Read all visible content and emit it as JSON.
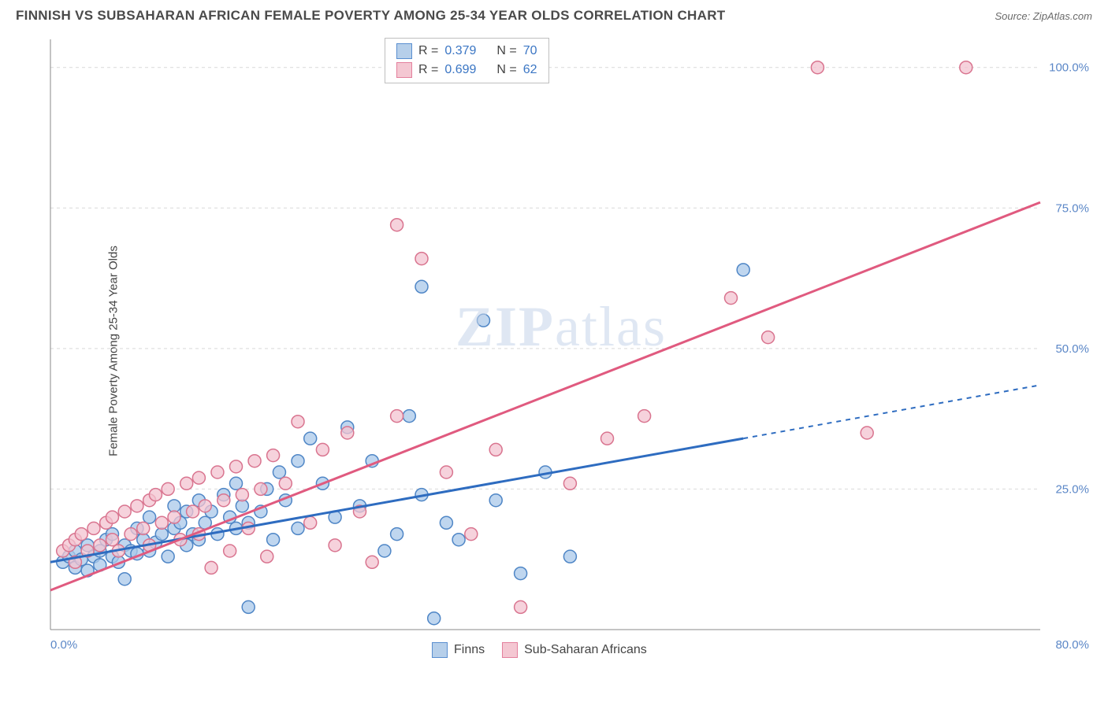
{
  "header": {
    "title": "FINNISH VS SUBSAHARAN AFRICAN FEMALE POVERTY AMONG 25-34 YEAR OLDS CORRELATION CHART",
    "source_prefix": "Source: ",
    "source_name": "ZipAtlas.com"
  },
  "chart": {
    "type": "scatter",
    "ylabel": "Female Poverty Among 25-34 Year Olds",
    "watermark": "ZIPatlas",
    "background_color": "#ffffff",
    "grid_color": "#d9d9d9",
    "axis_color": "#888888",
    "tick_label_color": "#5b87c7",
    "xlim": [
      0,
      80
    ],
    "ylim": [
      0,
      105
    ],
    "x_ticks": [
      {
        "v": 0,
        "label": "0.0%"
      },
      {
        "v": 80,
        "label": "80.0%"
      }
    ],
    "y_ticks": [
      {
        "v": 25,
        "label": "25.0%"
      },
      {
        "v": 50,
        "label": "50.0%"
      },
      {
        "v": 75,
        "label": "75.0%"
      },
      {
        "v": 100,
        "label": "100.0%"
      }
    ],
    "stat_legend": {
      "rows": [
        {
          "swatch_fill": "#b6cfea",
          "swatch_stroke": "#5a8fd0",
          "r_label": "R = ",
          "r": "0.379",
          "n_label": "N = ",
          "n": "70"
        },
        {
          "swatch_fill": "#f4c7d2",
          "swatch_stroke": "#e4809d",
          "r_label": "R = ",
          "r": "0.699",
          "n_label": "N = ",
          "n": "62"
        }
      ]
    },
    "bottom_legend": {
      "items": [
        {
          "swatch_fill": "#b6cfea",
          "swatch_stroke": "#5a8fd0",
          "label": "Finns"
        },
        {
          "swatch_fill": "#f4c7d2",
          "swatch_stroke": "#e4809d",
          "label": "Sub-Saharan Africans"
        }
      ]
    },
    "series": [
      {
        "name": "Finns",
        "marker_fill": "#a9c8e9",
        "marker_stroke": "#4f86c6",
        "marker_opacity": 0.75,
        "marker_radius": 8,
        "trend": {
          "color": "#2e6cc0",
          "width": 3,
          "x0": 0,
          "y0": 12,
          "x1": 56,
          "y1": 34,
          "dash_x1": 80,
          "dash_y1": 43.5
        },
        "points": [
          [
            1,
            12
          ],
          [
            1.5,
            13
          ],
          [
            2,
            11
          ],
          [
            2,
            14
          ],
          [
            2.5,
            12.5
          ],
          [
            3,
            10.5
          ],
          [
            3,
            15
          ],
          [
            3.5,
            13
          ],
          [
            4,
            14
          ],
          [
            4,
            11.5
          ],
          [
            4.5,
            16
          ],
          [
            5,
            13
          ],
          [
            5,
            17
          ],
          [
            5.5,
            12
          ],
          [
            6,
            15
          ],
          [
            6,
            9
          ],
          [
            6.5,
            14
          ],
          [
            7,
            13.5
          ],
          [
            7,
            18
          ],
          [
            7.5,
            16
          ],
          [
            8,
            14
          ],
          [
            8,
            20
          ],
          [
            8.5,
            15.5
          ],
          [
            9,
            17
          ],
          [
            9.5,
            13
          ],
          [
            10,
            18
          ],
          [
            10,
            22
          ],
          [
            10.5,
            19
          ],
          [
            11,
            15
          ],
          [
            11,
            21
          ],
          [
            11.5,
            17
          ],
          [
            12,
            23
          ],
          [
            12,
            16
          ],
          [
            12.5,
            19
          ],
          [
            13,
            21
          ],
          [
            13.5,
            17
          ],
          [
            14,
            24
          ],
          [
            14.5,
            20
          ],
          [
            15,
            18
          ],
          [
            15,
            26
          ],
          [
            15.5,
            22
          ],
          [
            16,
            19
          ],
          [
            16,
            4
          ],
          [
            17,
            21
          ],
          [
            17.5,
            25
          ],
          [
            18,
            16
          ],
          [
            18.5,
            28
          ],
          [
            19,
            23
          ],
          [
            20,
            18
          ],
          [
            20,
            30
          ],
          [
            21,
            34
          ],
          [
            22,
            26
          ],
          [
            23,
            20
          ],
          [
            24,
            36
          ],
          [
            25,
            22
          ],
          [
            26,
            30
          ],
          [
            27,
            14
          ],
          [
            28,
            17
          ],
          [
            29,
            38
          ],
          [
            30,
            24
          ],
          [
            30,
            61
          ],
          [
            31,
            2
          ],
          [
            32,
            19
          ],
          [
            33,
            16
          ],
          [
            35,
            55
          ],
          [
            36,
            23
          ],
          [
            38,
            10
          ],
          [
            40,
            28
          ],
          [
            42,
            13
          ],
          [
            56,
            64
          ]
        ]
      },
      {
        "name": "Sub-Saharan Africans",
        "marker_fill": "#f3c3d0",
        "marker_stroke": "#d9748f",
        "marker_opacity": 0.75,
        "marker_radius": 8,
        "trend": {
          "color": "#e05a7f",
          "width": 3,
          "x0": 0,
          "y0": 7,
          "x1": 80,
          "y1": 76
        },
        "points": [
          [
            1,
            14
          ],
          [
            1.5,
            15
          ],
          [
            2,
            16
          ],
          [
            2,
            12
          ],
          [
            2.5,
            17
          ],
          [
            3,
            14
          ],
          [
            3.5,
            18
          ],
          [
            4,
            15
          ],
          [
            4.5,
            19
          ],
          [
            5,
            16
          ],
          [
            5,
            20
          ],
          [
            5.5,
            14
          ],
          [
            6,
            21
          ],
          [
            6.5,
            17
          ],
          [
            7,
            22
          ],
          [
            7.5,
            18
          ],
          [
            8,
            23
          ],
          [
            8,
            15
          ],
          [
            8.5,
            24
          ],
          [
            9,
            19
          ],
          [
            9.5,
            25
          ],
          [
            10,
            20
          ],
          [
            10.5,
            16
          ],
          [
            11,
            26
          ],
          [
            11.5,
            21
          ],
          [
            12,
            17
          ],
          [
            12,
            27
          ],
          [
            12.5,
            22
          ],
          [
            13,
            11
          ],
          [
            13.5,
            28
          ],
          [
            14,
            23
          ],
          [
            14.5,
            14
          ],
          [
            15,
            29
          ],
          [
            15.5,
            24
          ],
          [
            16,
            18
          ],
          [
            16.5,
            30
          ],
          [
            17,
            25
          ],
          [
            17.5,
            13
          ],
          [
            18,
            31
          ],
          [
            19,
            26
          ],
          [
            20,
            37
          ],
          [
            21,
            19
          ],
          [
            22,
            32
          ],
          [
            23,
            15
          ],
          [
            24,
            35
          ],
          [
            25,
            21
          ],
          [
            26,
            12
          ],
          [
            28,
            38
          ],
          [
            28,
            72
          ],
          [
            30,
            66
          ],
          [
            32,
            28
          ],
          [
            34,
            17
          ],
          [
            36,
            32
          ],
          [
            38,
            4
          ],
          [
            42,
            26
          ],
          [
            45,
            34
          ],
          [
            48,
            38
          ],
          [
            55,
            59
          ],
          [
            58,
            52
          ],
          [
            62,
            100
          ],
          [
            66,
            35
          ],
          [
            74,
            100
          ]
        ]
      }
    ]
  }
}
